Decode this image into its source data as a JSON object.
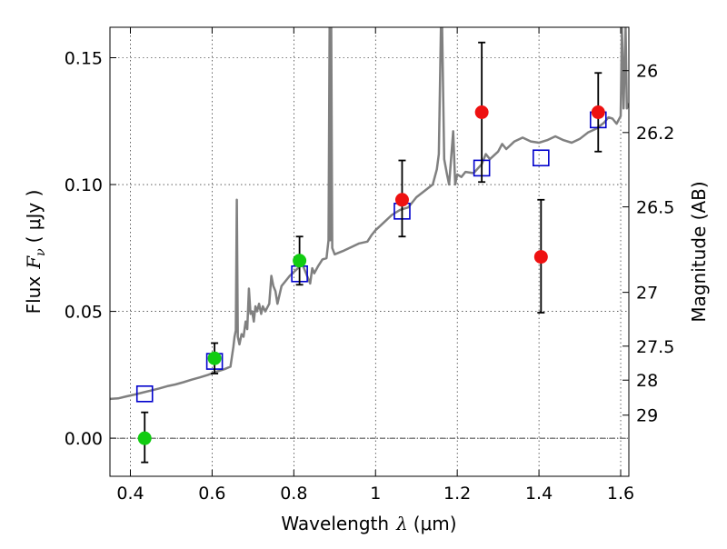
{
  "chart_data": {
    "type": "scatter",
    "xlabel_prefix": "Wavelength",
    "xlabel_symbol": "λ",
    "xlabel_unit": "(μm)",
    "ylabel_prefix": "Flux",
    "ylabel_symbol": "F",
    "ylabel_sub": "ν",
    "ylabel_unit": "( μJy )",
    "y2label": "Magnitude (AB)",
    "xlim": [
      0.35,
      1.62
    ],
    "ylim": [
      -0.015,
      0.162
    ],
    "grid": true,
    "x_ticks": [
      {
        "value": 0.4,
        "label": "0.4"
      },
      {
        "value": 0.6,
        "label": "0.6"
      },
      {
        "value": 0.8,
        "label": "0.8"
      },
      {
        "value": 1.0,
        "label": "1"
      },
      {
        "value": 1.2,
        "label": "1.2"
      },
      {
        "value": 1.4,
        "label": "1.4"
      },
      {
        "value": 1.6,
        "label": "1.6"
      }
    ],
    "y_ticks": [
      {
        "value": 0.0,
        "label": "0.00"
      },
      {
        "value": 0.05,
        "label": "0.05"
      },
      {
        "value": 0.1,
        "label": "0.10"
      },
      {
        "value": 0.15,
        "label": "0.15"
      }
    ],
    "y2_ticks": [
      {
        "flux": 0.1449,
        "label": "26"
      },
      {
        "flux": 0.1205,
        "label": "26.2"
      },
      {
        "flux": 0.0912,
        "label": "26.5"
      },
      {
        "flux": 0.0575,
        "label": "27"
      },
      {
        "flux": 0.0363,
        "label": "27.5"
      },
      {
        "flux": 0.0229,
        "label": "28"
      },
      {
        "flux": 0.0091,
        "label": "29"
      }
    ],
    "zero_line": true,
    "series": [
      {
        "kind": "model_spectrum",
        "color": "#808080",
        "points": [
          [
            0.35,
            0.0155
          ],
          [
            0.37,
            0.0157
          ],
          [
            0.39,
            0.0165
          ],
          [
            0.41,
            0.0172
          ],
          [
            0.43,
            0.018
          ],
          [
            0.45,
            0.0188
          ],
          [
            0.47,
            0.0196
          ],
          [
            0.49,
            0.0205
          ],
          [
            0.51,
            0.0212
          ],
          [
            0.53,
            0.0221
          ],
          [
            0.55,
            0.0231
          ],
          [
            0.57,
            0.024
          ],
          [
            0.59,
            0.025
          ],
          [
            0.61,
            0.0262
          ],
          [
            0.63,
            0.0272
          ],
          [
            0.645,
            0.0282
          ],
          [
            0.652,
            0.036
          ],
          [
            0.655,
            0.04
          ],
          [
            0.658,
            0.0425
          ],
          [
            0.6605,
            0.094
          ],
          [
            0.663,
            0.04
          ],
          [
            0.667,
            0.037
          ],
          [
            0.672,
            0.041
          ],
          [
            0.677,
            0.04
          ],
          [
            0.682,
            0.046
          ],
          [
            0.686,
            0.043
          ],
          [
            0.69,
            0.059
          ],
          [
            0.694,
            0.049
          ],
          [
            0.698,
            0.05
          ],
          [
            0.702,
            0.046
          ],
          [
            0.706,
            0.052
          ],
          [
            0.71,
            0.05
          ],
          [
            0.715,
            0.053
          ],
          [
            0.72,
            0.049
          ],
          [
            0.724,
            0.052
          ],
          [
            0.73,
            0.05
          ],
          [
            0.74,
            0.053
          ],
          [
            0.745,
            0.064
          ],
          [
            0.75,
            0.06
          ],
          [
            0.755,
            0.058
          ],
          [
            0.76,
            0.053
          ],
          [
            0.77,
            0.06
          ],
          [
            0.78,
            0.062
          ],
          [
            0.79,
            0.064
          ],
          [
            0.8,
            0.0655
          ],
          [
            0.81,
            0.067
          ],
          [
            0.82,
            0.069
          ],
          [
            0.83,
            0.065
          ],
          [
            0.84,
            0.061
          ],
          [
            0.845,
            0.067
          ],
          [
            0.85,
            0.065
          ],
          [
            0.86,
            0.068
          ],
          [
            0.87,
            0.0705
          ],
          [
            0.88,
            0.071
          ],
          [
            0.885,
            0.078
          ],
          [
            0.8875,
            0.162
          ],
          [
            0.889,
            0.078
          ],
          [
            0.8915,
            0.162
          ],
          [
            0.894,
            0.075
          ],
          [
            0.9,
            0.0725
          ],
          [
            0.92,
            0.0738
          ],
          [
            0.94,
            0.0753
          ],
          [
            0.96,
            0.0768
          ],
          [
            0.98,
            0.0775
          ],
          [
            0.99,
            0.08
          ],
          [
            1.0,
            0.082
          ],
          [
            1.02,
            0.085
          ],
          [
            1.04,
            0.088
          ],
          [
            1.06,
            0.09
          ],
          [
            1.08,
            0.091
          ],
          [
            1.09,
            0.093
          ],
          [
            1.1,
            0.095
          ],
          [
            1.12,
            0.0975
          ],
          [
            1.14,
            0.1
          ],
          [
            1.15,
            0.106
          ],
          [
            1.155,
            0.112
          ],
          [
            1.16,
            0.162
          ],
          [
            1.163,
            0.162
          ],
          [
            1.168,
            0.11
          ],
          [
            1.175,
            0.104
          ],
          [
            1.18,
            0.1
          ],
          [
            1.19,
            0.121
          ],
          [
            1.195,
            0.1
          ],
          [
            1.2,
            0.104
          ],
          [
            1.21,
            0.103
          ],
          [
            1.22,
            0.105
          ],
          [
            1.24,
            0.1045
          ],
          [
            1.26,
            0.108
          ],
          [
            1.27,
            0.112
          ],
          [
            1.28,
            0.11
          ],
          [
            1.3,
            0.113
          ],
          [
            1.31,
            0.116
          ],
          [
            1.32,
            0.114
          ],
          [
            1.34,
            0.117
          ],
          [
            1.36,
            0.1185
          ],
          [
            1.38,
            0.117
          ],
          [
            1.4,
            0.1165
          ],
          [
            1.42,
            0.1175
          ],
          [
            1.44,
            0.119
          ],
          [
            1.46,
            0.1175
          ],
          [
            1.48,
            0.1165
          ],
          [
            1.5,
            0.118
          ],
          [
            1.52,
            0.1205
          ],
          [
            1.54,
            0.122
          ],
          [
            1.56,
            0.1245
          ],
          [
            1.57,
            0.1265
          ],
          [
            1.58,
            0.126
          ],
          [
            1.59,
            0.124
          ],
          [
            1.6,
            0.127
          ],
          [
            1.603,
            0.162
          ],
          [
            1.607,
            0.13
          ],
          [
            1.612,
            0.162
          ],
          [
            1.615,
            0.13
          ],
          [
            1.62,
            0.132
          ]
        ]
      },
      {
        "name": "",
        "kind": "model_photometry",
        "marker": "open_square",
        "color": "#0000cc",
        "x": [
          0.435,
          0.606,
          0.814,
          1.065,
          1.26,
          1.405,
          1.545
        ],
        "y": [
          0.0175,
          0.0303,
          0.0648,
          0.0895,
          0.1065,
          0.1105,
          0.1255
        ]
      },
      {
        "name": "",
        "kind": "observed",
        "marker": "filled_circle",
        "color": "#11cc11",
        "x": [
          0.435,
          0.606,
          0.814
        ],
        "y": [
          0.0,
          0.0315,
          0.07
        ],
        "yerr": [
          [
            -0.0095,
            0.0102
          ],
          [
            0.0255,
            0.0375
          ],
          [
            0.0605,
            0.0795
          ]
        ]
      },
      {
        "name": "",
        "kind": "observed",
        "marker": "filled_circle",
        "color": "#ee1111",
        "x": [
          1.065,
          1.26,
          1.405,
          1.545
        ],
        "y": [
          0.094,
          0.1285,
          0.0715,
          0.1285
        ],
        "yerr": [
          [
            0.0795,
            0.1095
          ],
          [
            0.101,
            0.156
          ],
          [
            0.0495,
            0.094
          ],
          [
            0.113,
            0.144
          ]
        ]
      }
    ]
  }
}
